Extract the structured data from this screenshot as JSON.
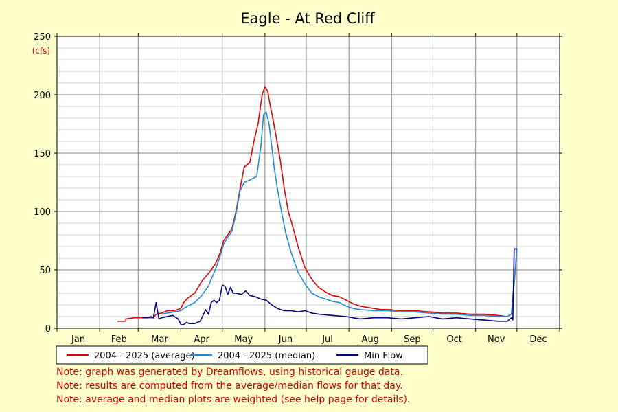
{
  "chart_data": {
    "type": "line",
    "title": "Eagle - At Red Cliff",
    "ylabel": "(cfs)",
    "ylim": [
      0,
      250
    ],
    "yticks": [
      0,
      50,
      100,
      150,
      200,
      250
    ],
    "xlim": [
      0,
      365
    ],
    "months": [
      "Jan",
      "Feb",
      "Mar",
      "Apr",
      "May",
      "Jun",
      "Jul",
      "Aug",
      "Sep",
      "Oct",
      "Nov",
      "Dec"
    ],
    "grid": true,
    "legend_position": "bottom",
    "series": [
      {
        "name": "2004 - 2025 (average)",
        "color": "#dd0000",
        "x": [
          44,
          50,
          50,
          56,
          58,
          62,
          66,
          70,
          72,
          76,
          80,
          85,
          90,
          92,
          95,
          100,
          105,
          110,
          112,
          115,
          118,
          121,
          124,
          127,
          130,
          133,
          136,
          140,
          143,
          146,
          149,
          151,
          153,
          155,
          157,
          159,
          162,
          165,
          168,
          171,
          175,
          180,
          185,
          190,
          195,
          200,
          205,
          210,
          215,
          220,
          225,
          230,
          235,
          240,
          250,
          260,
          270,
          280,
          290,
          300,
          310,
          320,
          327,
          330,
          332,
          334
        ],
        "y": [
          6,
          6,
          8,
          9,
          9,
          9,
          9,
          9,
          12,
          13,
          15,
          15,
          17,
          22,
          26,
          30,
          40,
          47,
          50,
          55,
          63,
          75,
          80,
          85,
          100,
          120,
          138,
          142,
          160,
          175,
          200,
          207,
          203,
          190,
          178,
          165,
          145,
          120,
          100,
          88,
          70,
          52,
          42,
          35,
          31,
          28,
          27,
          24,
          21,
          19,
          18,
          17,
          16,
          16,
          15,
          15,
          14,
          13,
          13,
          12,
          12,
          11,
          10,
          12,
          40,
          68
        ]
      },
      {
        "name": "2004 - 2025 (median)",
        "color": "#1f8ad4",
        "x": [
          76,
          80,
          85,
          90,
          92,
          95,
          100,
          105,
          110,
          112,
          115,
          118,
          121,
          124,
          127,
          130,
          133,
          136,
          140,
          145,
          148,
          150,
          152,
          154,
          156,
          158,
          160,
          163,
          166,
          170,
          175,
          180,
          185,
          190,
          195,
          200,
          205,
          210,
          215,
          220,
          230,
          240,
          250,
          260,
          270,
          280,
          290,
          300,
          310,
          320,
          327,
          330,
          332,
          334
        ],
        "y": [
          12,
          13,
          14,
          15,
          17,
          19,
          22,
          28,
          36,
          42,
          50,
          60,
          72,
          78,
          83,
          98,
          118,
          125,
          127,
          130,
          155,
          183,
          185,
          175,
          155,
          135,
          120,
          100,
          82,
          65,
          48,
          38,
          30,
          27,
          25,
          23,
          22,
          19,
          17,
          16,
          15,
          15,
          14,
          14,
          13,
          12,
          12,
          11,
          11,
          10,
          10,
          12,
          38,
          68
        ]
      },
      {
        "name": "Min Flow",
        "color": "#000080",
        "x": [
          62,
          66,
          68,
          70,
          72,
          74,
          76,
          80,
          84,
          88,
          90,
          92,
          94,
          96,
          100,
          104,
          108,
          110,
          112,
          114,
          116,
          118,
          120,
          122,
          124,
          126,
          128,
          130,
          134,
          137,
          140,
          144,
          148,
          152,
          156,
          160,
          165,
          170,
          175,
          180,
          185,
          190,
          200,
          210,
          220,
          230,
          240,
          250,
          260,
          270,
          280,
          290,
          300,
          310,
          320,
          327,
          330,
          331,
          332,
          333,
          334
        ],
        "y": [
          9,
          9,
          10,
          9,
          22,
          8,
          9,
          10,
          11,
          8,
          3,
          3,
          5,
          4,
          4,
          6,
          16,
          12,
          22,
          24,
          22,
          24,
          37,
          36,
          29,
          35,
          30,
          30,
          29,
          32,
          28,
          27,
          25,
          24,
          20,
          17,
          15,
          15,
          14,
          15,
          13,
          12,
          11,
          10,
          8,
          9,
          9,
          8,
          9,
          10,
          8,
          9,
          8,
          7,
          6,
          6,
          9,
          7,
          68,
          68,
          68
        ]
      }
    ]
  },
  "notes": [
    "Note: graph was generated by Dreamflows, using historical gauge data.",
    "Note: results are computed from the average/median flows for that day.",
    "Note: average and median plots are weighted (see help page for details)."
  ]
}
